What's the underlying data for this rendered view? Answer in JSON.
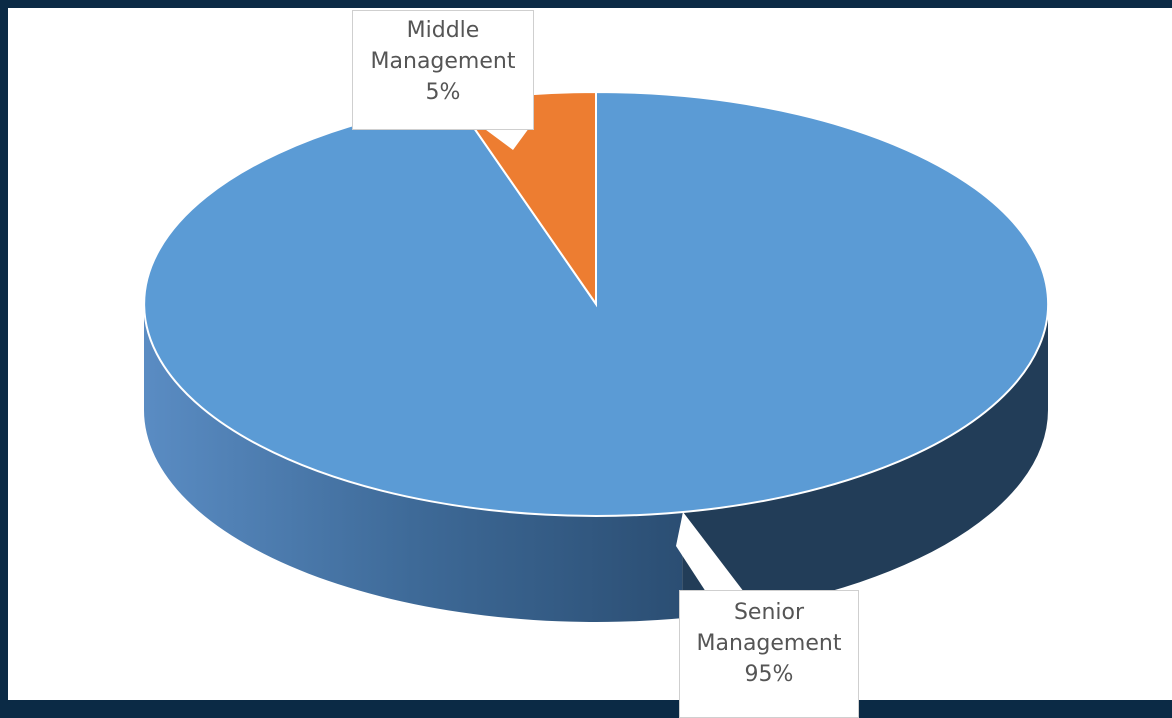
{
  "chart_data": {
    "type": "pie",
    "style": "3d",
    "slices": [
      {
        "label_line1": "Senior",
        "label_line2": "Management",
        "value_label": "95%",
        "value": 95,
        "color": "#5b9bd5"
      },
      {
        "label_line1": "Middle",
        "label_line2": "Management",
        "value_label": "5%",
        "value": 5,
        "color": "#ed7d31"
      }
    ]
  }
}
